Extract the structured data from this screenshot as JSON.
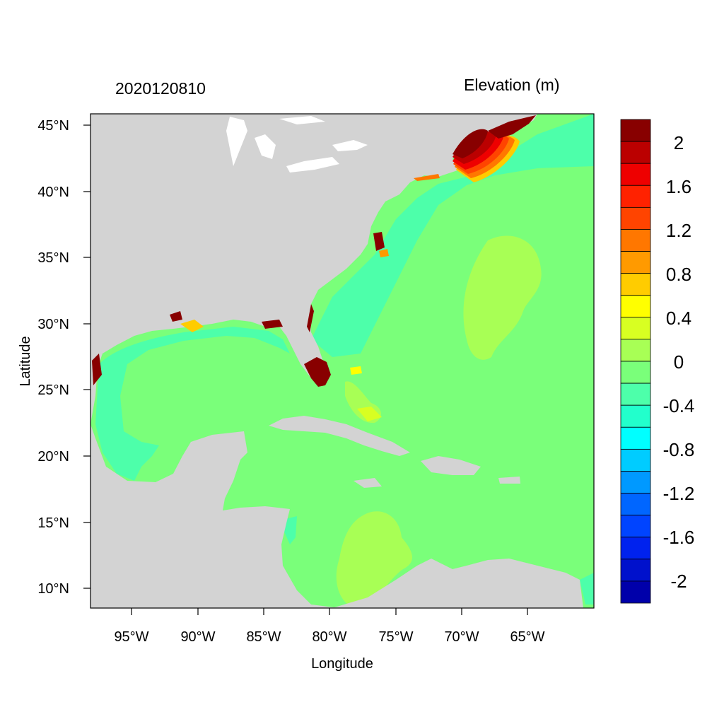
{
  "header": {
    "date": "2020120810",
    "variable": "Elevation (m)"
  },
  "axes": {
    "xlabel": "Longitude",
    "ylabel": "Latitude",
    "lon_ticks": [
      "95°W",
      "90°W",
      "85°W",
      "80°W",
      "75°W",
      "70°W",
      "65°W"
    ],
    "lat_ticks": [
      "45°N",
      "40°N",
      "35°N",
      "30°N",
      "25°N",
      "20°N",
      "15°N",
      "10°N"
    ]
  },
  "colorbar": {
    "labels": [
      "2",
      "1.6",
      "1.2",
      "0.8",
      "0.4",
      "0",
      "-0.4",
      "-0.8",
      "-1.2",
      "-1.6",
      "-2"
    ],
    "colors": [
      "#880000",
      "#bb0000",
      "#ee0000",
      "#ff2200",
      "#ff4400",
      "#ff7700",
      "#ff9a00",
      "#ffcc00",
      "#ffff00",
      "#d8ff22",
      "#a8ff55",
      "#7aff7a",
      "#4dffaa",
      "#22ffcc",
      "#00ffff",
      "#00ccff",
      "#0099ff",
      "#0066ff",
      "#0044ff",
      "#0022ee",
      "#0011cc",
      "#0000aa"
    ]
  },
  "colors": {
    "land": "#d3d3d3",
    "ocean_zero": "#7aff7a",
    "ocean_neg": "#4dffaa",
    "ocean_pos": "#a8ff55"
  }
}
